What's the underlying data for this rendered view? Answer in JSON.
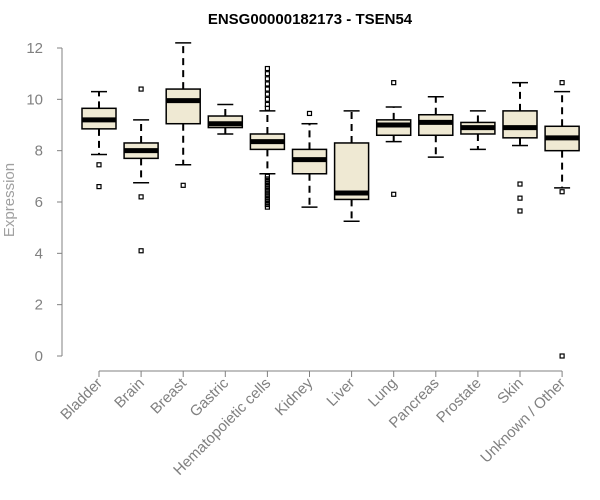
{
  "chart_data": {
    "type": "box",
    "title": "ENSG00000182173 - TSEN54",
    "ylabel": "Expression",
    "xlabel": "",
    "ylim": [
      0,
      12
    ],
    "yticks": [
      0,
      2,
      4,
      6,
      8,
      10,
      12
    ],
    "colors": {
      "box_fill": "#efe9d3",
      "axis": "#808080"
    },
    "categories": [
      "Bladder",
      "Brain",
      "Breast",
      "Gastric",
      "Hematopoietic cells",
      "Kidney",
      "Liver",
      "Lung",
      "Pancreas",
      "Prostate",
      "Skin",
      "Unknown / Other"
    ],
    "boxes": [
      {
        "category": "Bladder",
        "q1": 8.85,
        "median": 9.2,
        "q3": 9.65,
        "low": 7.85,
        "high": 10.3,
        "outliers": [
          7.45,
          6.6
        ]
      },
      {
        "category": "Brain",
        "q1": 7.7,
        "median": 8.0,
        "q3": 8.3,
        "low": 6.75,
        "high": 9.2,
        "outliers": [
          10.4,
          6.2,
          4.1
        ]
      },
      {
        "category": "Breast",
        "q1": 9.05,
        "median": 9.95,
        "q3": 10.4,
        "low": 7.45,
        "high": 12.2,
        "outliers": [
          6.65
        ]
      },
      {
        "category": "Gastric",
        "q1": 8.9,
        "median": 9.05,
        "q3": 9.35,
        "low": 8.65,
        "high": 9.8,
        "outliers": []
      },
      {
        "category": "Hematopoietic cells",
        "q1": 8.05,
        "median": 8.35,
        "q3": 8.65,
        "low": 7.1,
        "high": 9.55,
        "outliers": [
          11.2,
          11.0,
          10.8,
          10.6,
          10.4,
          10.2,
          10.0,
          9.8,
          9.65,
          7.0,
          6.9,
          6.8,
          6.7,
          6.6,
          6.5,
          6.4,
          6.3,
          6.2,
          6.1,
          6.0,
          5.9,
          5.8
        ]
      },
      {
        "category": "Kidney",
        "q1": 7.1,
        "median": 7.65,
        "q3": 8.05,
        "low": 5.8,
        "high": 9.05,
        "outliers": [
          9.45
        ]
      },
      {
        "category": "Liver",
        "q1": 6.1,
        "median": 6.35,
        "q3": 8.3,
        "low": 5.25,
        "high": 9.55,
        "outliers": []
      },
      {
        "category": "Lung",
        "q1": 8.6,
        "median": 9.0,
        "q3": 9.2,
        "low": 8.35,
        "high": 9.7,
        "outliers": [
          10.65,
          6.3
        ]
      },
      {
        "category": "Pancreas",
        "q1": 8.6,
        "median": 9.1,
        "q3": 9.4,
        "low": 7.75,
        "high": 10.1,
        "outliers": []
      },
      {
        "category": "Prostate",
        "q1": 8.65,
        "median": 8.9,
        "q3": 9.1,
        "low": 8.05,
        "high": 9.55,
        "outliers": []
      },
      {
        "category": "Skin",
        "q1": 8.5,
        "median": 8.9,
        "q3": 9.55,
        "low": 8.2,
        "high": 10.65,
        "outliers": [
          6.7,
          6.15,
          5.65
        ]
      },
      {
        "category": "Unknown / Other",
        "q1": 8.0,
        "median": 8.5,
        "q3": 8.95,
        "low": 6.55,
        "high": 10.3,
        "outliers": [
          10.65,
          6.4,
          0.0
        ]
      }
    ]
  }
}
